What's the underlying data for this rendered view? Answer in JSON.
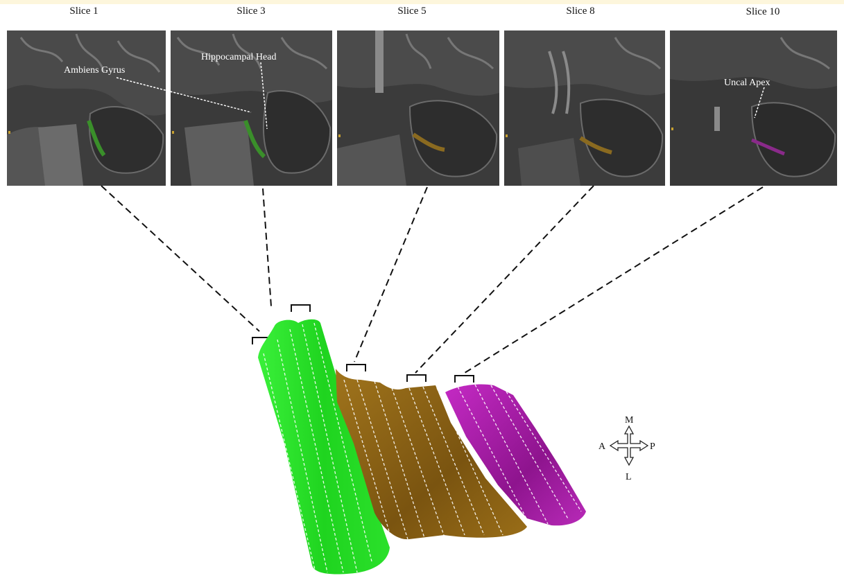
{
  "slices": [
    {
      "title": "Slice 1",
      "color": "#3a8f2a"
    },
    {
      "title": "Slice 3",
      "color": "#3a8f2a"
    },
    {
      "title": "Slice 5",
      "color": "#8a6a20"
    },
    {
      "title": "Slice 8",
      "color": "#8a6a20"
    },
    {
      "title": "Slice 10",
      "color": "#8a2a8a"
    }
  ],
  "annotations": {
    "ambiens": "Ambiens Gyrus",
    "hippocampal_head": "Hippocampal Head",
    "uncal_apex": "Uncal Apex"
  },
  "orientation": {
    "m": "M",
    "a": "A",
    "p": "P",
    "l": "L"
  },
  "colors": {
    "green": "#22dd22",
    "brown": "#8b6114",
    "magenta": "#b81cb8"
  }
}
